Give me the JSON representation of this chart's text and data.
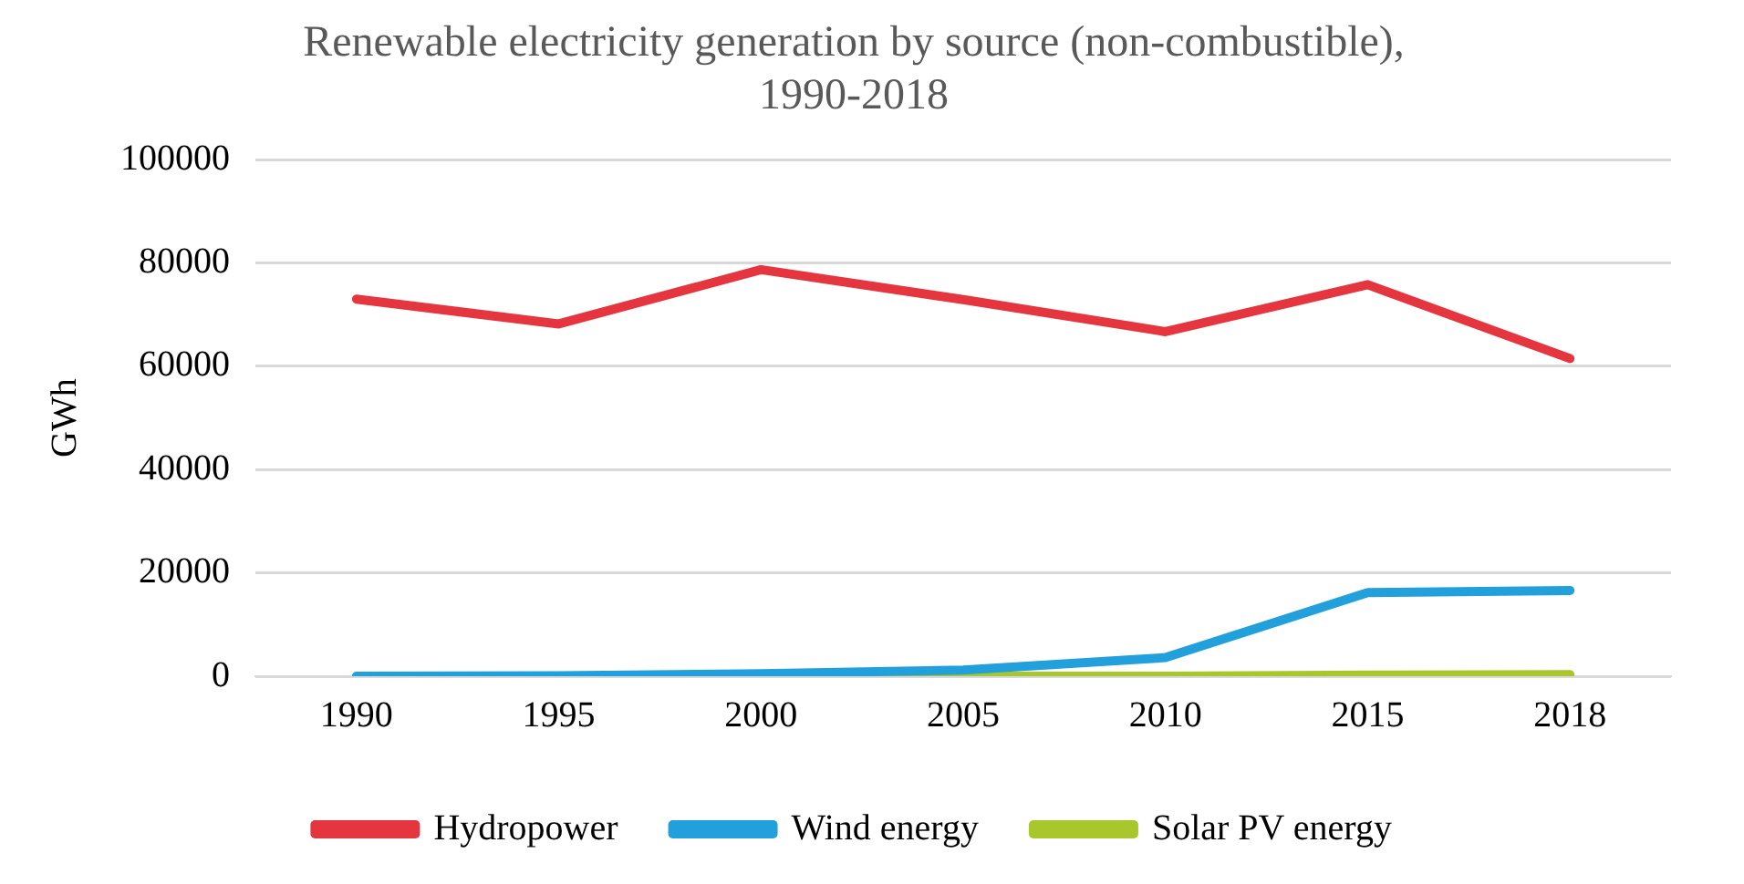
{
  "chart_data": {
    "type": "line",
    "title": "Renewable electricity generation by source (non-combustible),\n1990-2018",
    "ylabel": "GWh",
    "categories": [
      "1990",
      "1995",
      "2000",
      "2005",
      "2010",
      "2015",
      "2018"
    ],
    "series": [
      {
        "name": "Hydropower",
        "color": "#e5363f",
        "values": [
          73000,
          68200,
          78700,
          72900,
          66700,
          75800,
          61500
        ]
      },
      {
        "name": "Wind energy",
        "color": "#22a0dc",
        "values": [
          0,
          100,
          500,
          1200,
          3600,
          16200,
          16600
        ]
      },
      {
        "name": "Solar PV energy",
        "color": "#a8c72c",
        "values": [
          null,
          0,
          0,
          0,
          0,
          200,
          300
        ]
      }
    ],
    "ylim": [
      0,
      100000
    ],
    "yticks": [
      0,
      20000,
      40000,
      60000,
      80000,
      100000
    ],
    "grid": "y",
    "legend": "bottom",
    "marker": "none",
    "line_style": "solid"
  }
}
